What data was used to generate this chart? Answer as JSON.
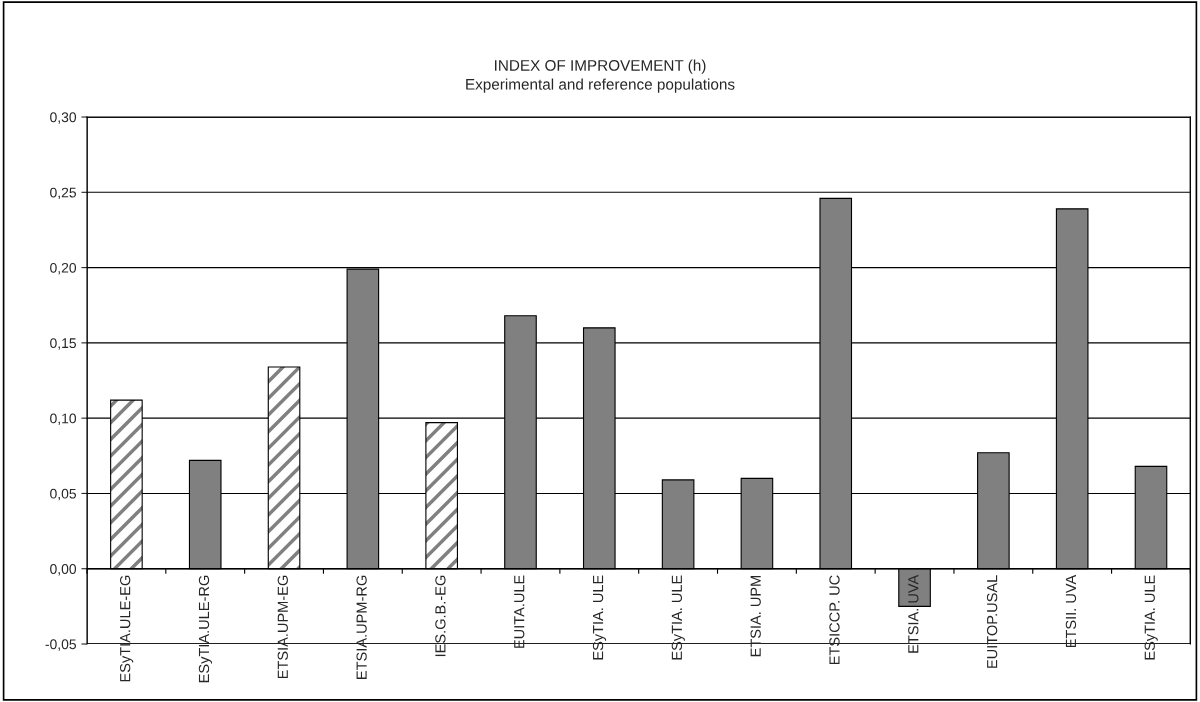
{
  "chart_data": {
    "type": "bar",
    "title": "INDEX OF IMPROVEMENT (h)",
    "subtitle": "Experimental and reference populations",
    "categories": [
      "ESyTIA.ULE-EG",
      "ESyTIA.ULE-RG",
      "ETSIA.UPM-EG",
      "ETSIA.UPM-RG",
      "IES.G.B.-EG",
      "EUITA.ULE",
      "ESyTIA. ULE",
      "ESyTIA. ULE",
      "ETSIA. UPM",
      "ETSICCP. UC",
      "ETSIA. UVA",
      "EUITOP.USAL",
      "ETSII. UVA",
      "ESyTIA. ULE"
    ],
    "values": [
      0.112,
      0.072,
      0.134,
      0.199,
      0.097,
      0.168,
      0.16,
      0.059,
      0.06,
      0.246,
      -0.025,
      0.077,
      0.239,
      0.068
    ],
    "colors": [
      "#ffffff",
      "#808080",
      "#ffffff",
      "#808080",
      "#ffffff",
      "#808080",
      "#808080",
      "#808080",
      "#808080",
      "#808080",
      "#808080",
      "#808080",
      "#808080",
      "#808080"
    ],
    "ylim": [
      -0.05,
      0.3
    ],
    "yticks": [
      {
        "value": -0.05,
        "label": "-0,05"
      },
      {
        "value": 0.0,
        "label": "0,00"
      },
      {
        "value": 0.05,
        "label": "0,05"
      },
      {
        "value": 0.1,
        "label": "0,10"
      },
      {
        "value": 0.15,
        "label": "0,15"
      },
      {
        "value": 0.2,
        "label": "0,20"
      },
      {
        "value": 0.25,
        "label": "0,25"
      },
      {
        "value": 0.3,
        "label": "0,30"
      }
    ],
    "grid": "y",
    "legend": false
  }
}
